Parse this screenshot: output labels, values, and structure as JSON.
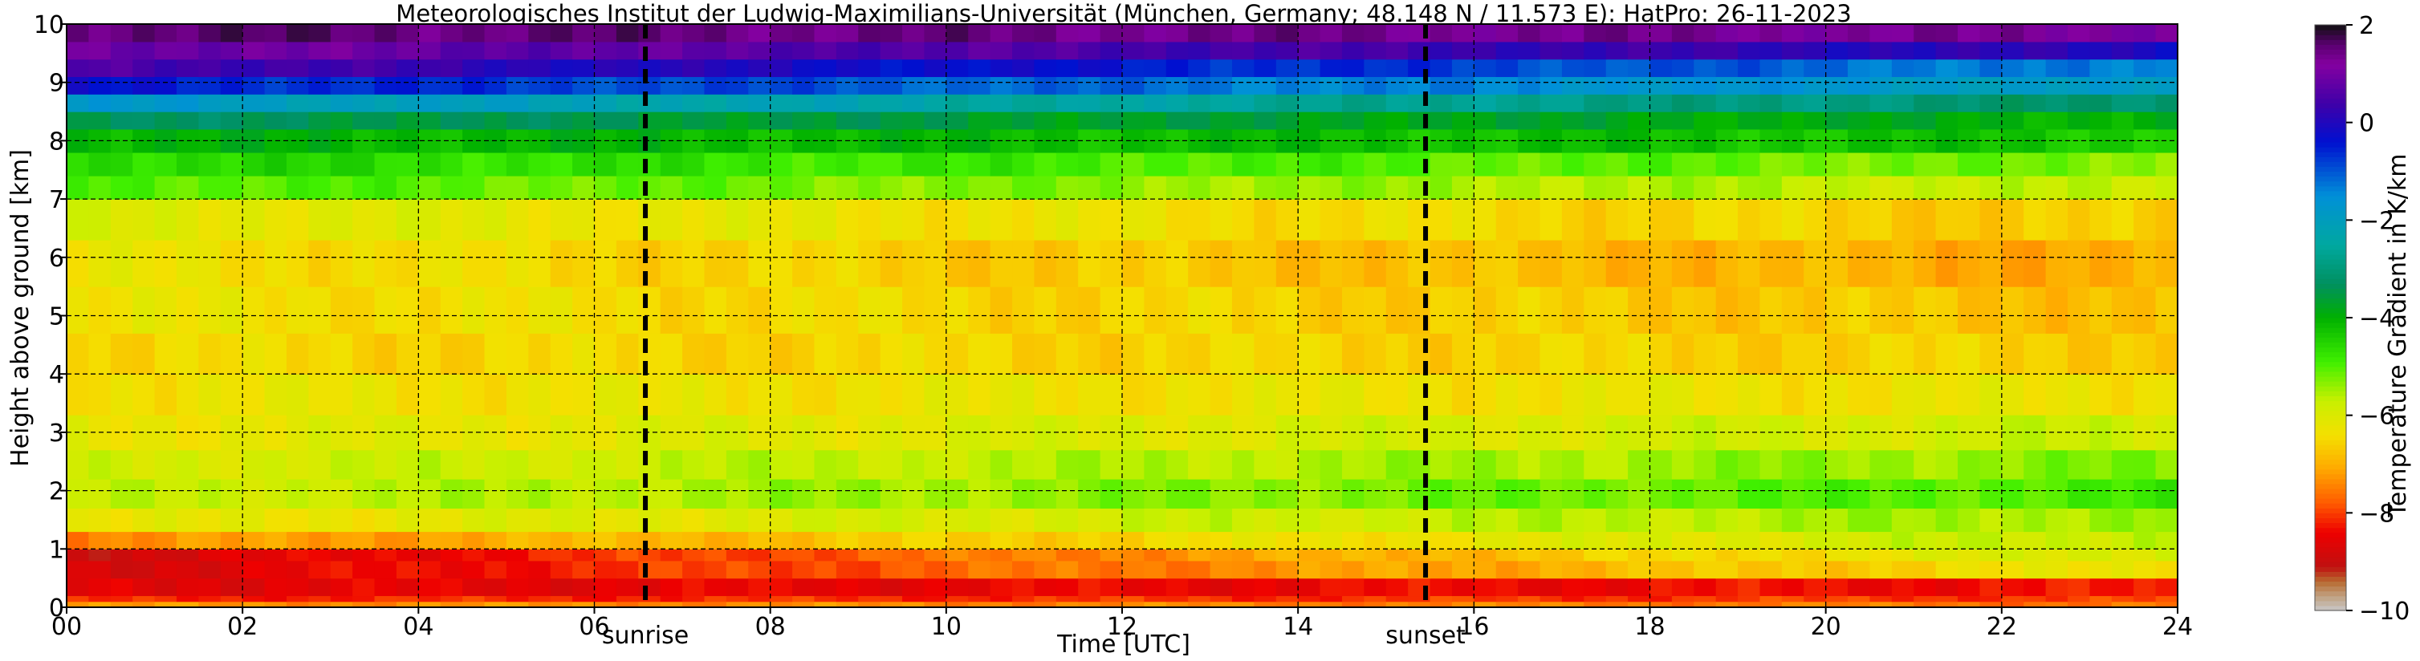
{
  "chart_data": {
    "type": "heatmap",
    "title": "Meteorologisches Institut der Ludwig-Maximilians-Universität (München, Germany; 48.148 N / 11.573 E):    HatPro: 26-11-2023",
    "xlabel": "Time [UTC]",
    "ylabel": "Height above ground [km]",
    "xlim": [
      0,
      24
    ],
    "ylim": [
      0,
      10
    ],
    "x_ticks": [
      0,
      2,
      4,
      6,
      8,
      10,
      12,
      14,
      16,
      18,
      20,
      22,
      24
    ],
    "x_tick_labels": [
      "00",
      "02",
      "04",
      "06",
      "08",
      "10",
      "12",
      "14",
      "16",
      "18",
      "20",
      "22",
      "24"
    ],
    "y_ticks": [
      0,
      1,
      2,
      3,
      4,
      5,
      6,
      7,
      8,
      9,
      10
    ],
    "y_tick_labels": [
      "0",
      "1",
      "2",
      "3",
      "4",
      "5",
      "6",
      "7",
      "8",
      "9",
      "10"
    ],
    "grid": true,
    "markers": [
      {
        "label": "sunrise",
        "time": 6.58
      },
      {
        "label": "sunset",
        "time": 15.45
      }
    ],
    "colorbar": {
      "label": "Temperature Gradient in K/km",
      "range": [
        -10,
        2
      ],
      "ticks": [
        2,
        0,
        -2,
        -4,
        -6,
        -8,
        -10
      ],
      "tick_labels": [
        "2",
        "0",
        "−2",
        "−4",
        "−6",
        "−8",
        "−10"
      ],
      "colors": [
        {
          "value": -10.0,
          "color": "#c8c8c8"
        },
        {
          "value": -9.7,
          "color": "#c0a080"
        },
        {
          "value": -9.4,
          "color": "#b86a30"
        },
        {
          "value": -9.1,
          "color": "#c01010"
        },
        {
          "value": -8.4,
          "color": "#ee0000"
        },
        {
          "value": -7.8,
          "color": "#ff5a00"
        },
        {
          "value": -7.1,
          "color": "#ffa800"
        },
        {
          "value": -6.4,
          "color": "#f4e000"
        },
        {
          "value": -5.7,
          "color": "#c8f000"
        },
        {
          "value": -4.9,
          "color": "#40f000"
        },
        {
          "value": -4.0,
          "color": "#00b000"
        },
        {
          "value": -3.3,
          "color": "#009060"
        },
        {
          "value": -2.5,
          "color": "#00a8a0"
        },
        {
          "value": -1.5,
          "color": "#0090d8"
        },
        {
          "value": -0.4,
          "color": "#0010d0"
        },
        {
          "value": 0.4,
          "color": "#4000a8"
        },
        {
          "value": 1.2,
          "color": "#8400a0"
        },
        {
          "value": 1.6,
          "color": "#5a0070"
        },
        {
          "value": 2.0,
          "color": "#101010"
        }
      ]
    },
    "layers": [
      {
        "h0": 0.0,
        "h1": 0.1,
        "start": -7.3,
        "end": -7.6
      },
      {
        "h0": 0.1,
        "h1": 0.2,
        "start": -8.2,
        "end": -8.0
      },
      {
        "h0": 0.2,
        "h1": 0.5,
        "start": -8.6,
        "end": -8.3
      },
      {
        "h0": 0.5,
        "h1": 0.8,
        "start": -8.8,
        "end": -6.2
      },
      {
        "h0": 0.8,
        "h1": 1.0,
        "start": -8.9,
        "end": -5.8
      },
      {
        "h0": 1.0,
        "h1": 1.3,
        "start": -7.4,
        "end": -5.6
      },
      {
        "h0": 1.3,
        "h1": 1.7,
        "start": -6.3,
        "end": -5.4
      },
      {
        "h0": 1.7,
        "h1": 2.2,
        "start": -5.8,
        "end": -4.9
      },
      {
        "h0": 2.2,
        "h1": 2.7,
        "start": -5.9,
        "end": -5.3
      },
      {
        "h0": 2.7,
        "h1": 3.3,
        "start": -6.2,
        "end": -5.8
      },
      {
        "h0": 3.3,
        "h1": 4.0,
        "start": -6.3,
        "end": -6.3
      },
      {
        "h0": 4.0,
        "h1": 4.7,
        "start": -6.5,
        "end": -6.6
      },
      {
        "h0": 4.7,
        "h1": 5.5,
        "start": -6.3,
        "end": -6.8
      },
      {
        "h0": 5.5,
        "h1": 6.3,
        "start": -6.3,
        "end": -7.1
      },
      {
        "h0": 6.3,
        "h1": 7.0,
        "start": -6.0,
        "end": -6.7
      },
      {
        "h0": 7.0,
        "h1": 7.4,
        "start": -4.9,
        "end": -5.8
      },
      {
        "h0": 7.4,
        "h1": 7.8,
        "start": -4.5,
        "end": -5.3
      },
      {
        "h0": 7.8,
        "h1": 8.2,
        "start": -4.0,
        "end": -4.3
      },
      {
        "h0": 8.2,
        "h1": 8.5,
        "start": -3.3,
        "end": -4.0
      },
      {
        "h0": 8.5,
        "h1": 8.8,
        "start": -1.8,
        "end": -3.2
      },
      {
        "h0": 8.8,
        "h1": 9.1,
        "start": -0.4,
        "end": -2.0
      },
      {
        "h0": 9.1,
        "h1": 9.4,
        "start": 0.6,
        "end": -1.5
      },
      {
        "h0": 9.4,
        "h1": 9.7,
        "start": 1.0,
        "end": 0.0
      },
      {
        "h0": 9.7,
        "h1": 10.0,
        "start": 1.6,
        "end": 1.2
      }
    ]
  }
}
